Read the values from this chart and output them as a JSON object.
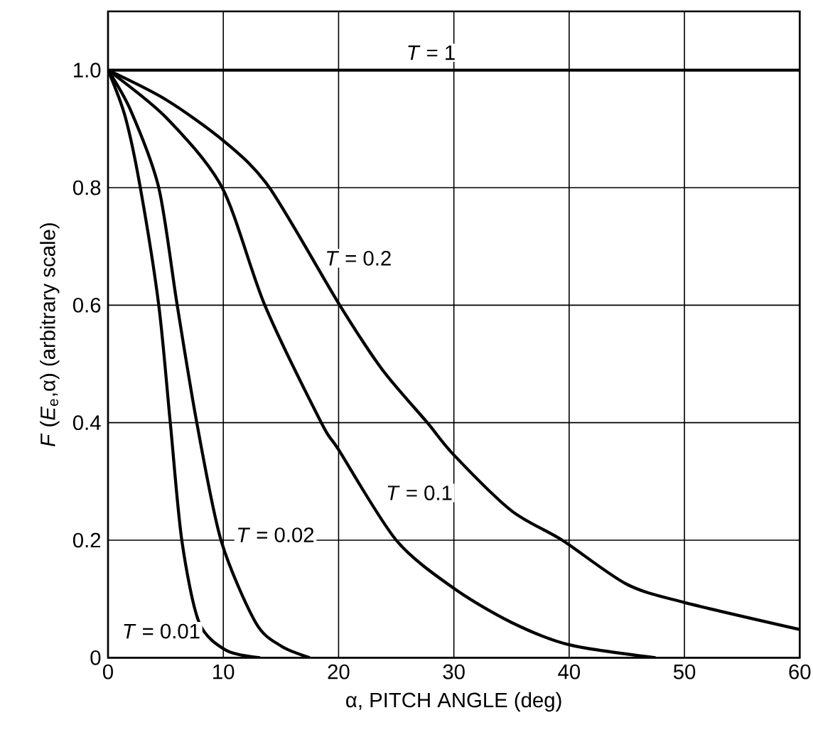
{
  "chart_data": {
    "type": "line",
    "xlabel": "α, PITCH ANGLE (deg)",
    "ylabel": "*F* (*E*$_{e}$,α)  (arbitrary scale)",
    "xlim": [
      0,
      60
    ],
    "ylim": [
      0,
      1.1
    ],
    "xticks": [
      0,
      10,
      20,
      30,
      40,
      50,
      60
    ],
    "yticks": [
      0,
      {
        "value": 0.2,
        "label": "0.2"
      },
      {
        "value": 0.4,
        "label": "0.4"
      },
      {
        "value": 0.6,
        "label": "0.6"
      },
      {
        "value": 0.8,
        "label": "0.8"
      },
      {
        "value": 1,
        "label": "1.0"
      }
    ],
    "grid": true,
    "marker": "none",
    "line_style": "solid",
    "series": [
      {
        "name": "*T* = 1",
        "color": "#000000",
        "x": [
          0,
          10,
          20,
          30,
          40,
          50,
          60
        ],
        "values": [
          1,
          1,
          1,
          1,
          1,
          1,
          1
        ]
      },
      {
        "name": "*T* = 0.2",
        "color": "#000000",
        "x": [
          0,
          5,
          10,
          14,
          20.1,
          23.8,
          27.7,
          30,
          35,
          39.4,
          45,
          50,
          60
        ],
        "values": [
          1,
          0.95,
          0.88,
          0.8,
          0.6,
          0.49,
          0.4,
          0.345,
          0.25,
          0.2,
          0.125,
          0.094,
          0.048
        ]
      },
      {
        "name": "*T* = 0.1",
        "color": "#000000",
        "x": [
          0,
          5,
          9.9,
          13.6,
          18.5,
          20,
          25,
          30,
          35,
          40,
          47.5
        ],
        "values": [
          1,
          0.92,
          0.8,
          0.6,
          0.4,
          0.354,
          0.2,
          0.118,
          0.06,
          0.022,
          0
        ]
      },
      {
        "name": "*T* = 0.02",
        "color": "#000000",
        "x": [
          0,
          2,
          4.4,
          6.0,
          7.7,
          9.8,
          12.8,
          15,
          17.5
        ],
        "values": [
          1,
          0.93,
          0.8,
          0.6,
          0.4,
          0.2,
          0.06,
          0.02,
          0
        ]
      },
      {
        "name": "*T* = 0.01",
        "color": "#000000",
        "x": [
          0,
          1.5,
          2.8,
          4.4,
          5.4,
          6.4,
          7.9,
          10.3,
          13.2
        ],
        "values": [
          1,
          0.92,
          0.8,
          0.6,
          0.4,
          0.2,
          0.06,
          0.012,
          0
        ]
      }
    ]
  }
}
